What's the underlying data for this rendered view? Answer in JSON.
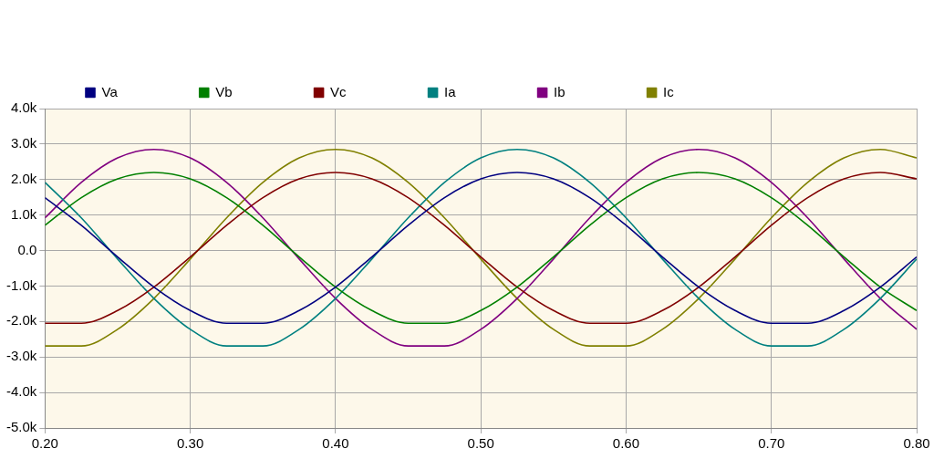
{
  "chart_data": {
    "type": "line",
    "x": [
      0.2,
      0.225,
      0.25,
      0.275,
      0.3,
      0.325,
      0.35,
      0.375,
      0.4,
      0.425,
      0.45,
      0.475,
      0.5,
      0.525,
      0.55,
      0.575,
      0.6,
      0.625,
      0.65,
      0.675,
      0.7,
      0.725,
      0.75,
      0.775,
      0.8
    ],
    "series": [
      {
        "name": "Va",
        "color": "#000080",
        "values": [
          1490,
          710,
          -180,
          -1030,
          -1690,
          -2050,
          -2050,
          -1690,
          -1030,
          -180,
          710,
          1490,
          2020,
          2200,
          2020,
          1490,
          710,
          -180,
          -1030,
          -1690,
          -2050,
          -2050,
          -1690,
          -1030,
          -180
        ]
      },
      {
        "name": "Vb",
        "color": "#008000",
        "values": [
          710,
          1490,
          2020,
          2200,
          2020,
          1490,
          710,
          -180,
          -1030,
          -1690,
          -2050,
          -2050,
          -1690,
          -1030,
          -180,
          710,
          1490,
          2020,
          2200,
          2020,
          1490,
          710,
          -180,
          -1030,
          -1690
        ]
      },
      {
        "name": "Vc",
        "color": "#800000",
        "values": [
          -2050,
          -2050,
          -1690,
          -1030,
          -180,
          710,
          1490,
          2020,
          2200,
          2020,
          1490,
          710,
          -180,
          -1030,
          -1690,
          -2050,
          -2050,
          -1690,
          -1030,
          -180,
          710,
          1490,
          2020,
          2200,
          2020
        ]
      },
      {
        "name": "Ia",
        "color": "#008080",
        "values": [
          1920,
          920,
          -240,
          -1350,
          -2220,
          -2690,
          -2690,
          -2220,
          -1350,
          -240,
          920,
          1920,
          2610,
          2850,
          2610,
          1920,
          920,
          -240,
          -1350,
          -2220,
          -2690,
          -2690,
          -2220,
          -1350,
          -240
        ]
      },
      {
        "name": "Ib",
        "color": "#800080",
        "values": [
          920,
          1920,
          2610,
          2850,
          2610,
          1920,
          920,
          -240,
          -1350,
          -2220,
          -2690,
          -2690,
          -2220,
          -1350,
          -240,
          920,
          1920,
          2610,
          2850,
          2610,
          1920,
          920,
          -240,
          -1350,
          -2220
        ]
      },
      {
        "name": "Ic",
        "color": "#808000",
        "values": [
          -2690,
          -2690,
          -2220,
          -1350,
          -240,
          920,
          1920,
          2610,
          2850,
          2610,
          1920,
          920,
          -240,
          -1350,
          -2220,
          -2690,
          -2690,
          -2220,
          -1350,
          -240,
          920,
          1920,
          2610,
          2850,
          2610
        ]
      }
    ],
    "xlim": [
      0.2,
      0.8
    ],
    "xticks": [
      {
        "value": 0.2,
        "label": "0.20"
      },
      {
        "value": 0.3,
        "label": "0.30"
      },
      {
        "value": 0.4,
        "label": "0.40"
      },
      {
        "value": 0.5,
        "label": "0.50"
      },
      {
        "value": 0.6,
        "label": "0.60"
      },
      {
        "value": 0.7,
        "label": "0.70"
      },
      {
        "value": 0.8,
        "label": "0.80"
      }
    ],
    "ylim": [
      -5000,
      4000
    ],
    "yticks": [
      {
        "value": -5000,
        "label": "-5.0k"
      },
      {
        "value": -4000,
        "label": "-4.0k"
      },
      {
        "value": -3000,
        "label": "-3.0k"
      },
      {
        "value": -2000,
        "label": "-2.0k"
      },
      {
        "value": -1000,
        "label": "-1.0k"
      },
      {
        "value": 0,
        "label": "0.0"
      },
      {
        "value": 1000,
        "label": "1.0k"
      },
      {
        "value": 2000,
        "label": "2.0k"
      },
      {
        "value": 3000,
        "label": "3.0k"
      },
      {
        "value": 4000,
        "label": "4.0k"
      }
    ],
    "grid": true,
    "legend": "top",
    "marker": "none",
    "line_style": "solid"
  }
}
